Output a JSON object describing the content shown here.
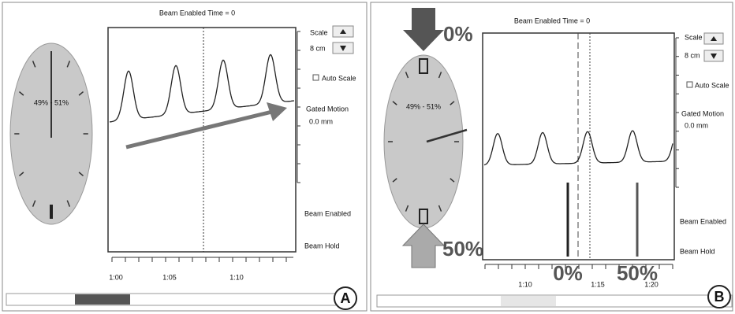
{
  "panels": [
    {
      "label": "A",
      "header": "Beam Enabled Time = 0",
      "clock_label": "49% - 51%",
      "scale_label": "Scale",
      "scale_value": "8 cm",
      "auto_scale": "Auto Scale",
      "gated_motion": "Gated Motion",
      "gated_value": "0.0 mm",
      "beam_enabled": "Beam Enabled",
      "beam_hold": "Beam Hold",
      "time_ticks": [
        "1:00",
        "1:05",
        "1:10"
      ]
    },
    {
      "label": "B",
      "header": "Beam Enabled Time = 0",
      "clock_label": "49% - 51%",
      "scale_label": "Scale",
      "scale_value": "8 cm",
      "auto_scale": "Auto Scale",
      "gated_motion": "Gated Motion",
      "gated_value": "0.0 mm",
      "beam_enabled": "Beam Enabled",
      "beam_hold": "Beam Hold",
      "time_ticks": [
        "1:10",
        "1:15",
        "1:20"
      ],
      "annotations": {
        "clock_top": "0%",
        "clock_bottom": "50%",
        "bar_left": "0%",
        "bar_right": "50%"
      }
    }
  ]
}
